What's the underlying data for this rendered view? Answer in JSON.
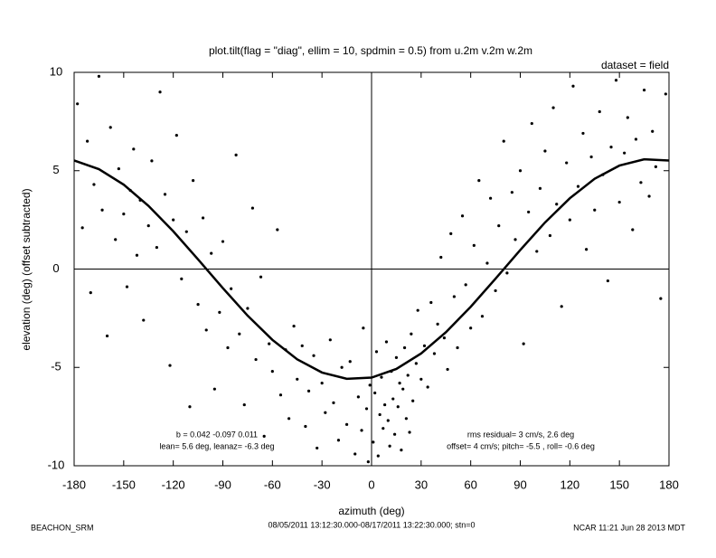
{
  "chart_data": {
    "type": "scatter",
    "title": "plot.tilt(flag = \"diag\", ellim = 10, spdmin = 0.5) from u.2m v.2m w.2m",
    "subtitle": "dataset = field",
    "x_label": "azimuth (deg)",
    "y_label": "elevation (deg)  (offset subtracted)",
    "annotations_left": [
      "b =  0.042 -0.097  0.011",
      "lean= 5.6 deg, leanaz= -6.3 deg"
    ],
    "annotations_right": [
      "rms residual= 3 cm/s, 2.6 deg",
      "offset= 4 cm/s; pitch= -5.5 , roll= -0.6 deg"
    ],
    "footer": [
      "BEACHON_SRM",
      "08/05/2011 13:12:30.000-08/17/2011 13:22:30.000; stn=0",
      "NCAR 11:21 Jun 28 2013 MDT"
    ],
    "color": "#000000",
    "xlim": [
      -180,
      180
    ],
    "ylim": [
      -10,
      10
    ],
    "xticks": [
      -180,
      -150,
      -120,
      -90,
      -60,
      -30,
      0,
      30,
      60,
      90,
      120,
      150,
      180
    ],
    "yticks": [
      -10,
      -5,
      0,
      5,
      10
    ],
    "x": [
      -178,
      -175,
      -172,
      -170,
      -168,
      -165,
      -163,
      -160,
      -158,
      -155,
      -153,
      -150,
      -148,
      -146,
      -144,
      -142,
      -140,
      -138,
      -135,
      -133,
      -130,
      -128,
      -125,
      -122,
      -120,
      -118,
      -115,
      -112,
      -110,
      -108,
      -105,
      -102,
      -100,
      -97,
      -95,
      -92,
      -90,
      -87,
      -85,
      -82,
      -80,
      -77,
      -75,
      -72,
      -70,
      -67,
      -65,
      -62,
      -60,
      -57,
      -55,
      -52,
      -50,
      -47,
      -45,
      -42,
      -40,
      -38,
      -35,
      -33,
      -30,
      -28,
      -25,
      -23,
      -20,
      -18,
      -15,
      -13,
      -10,
      -8,
      -6,
      -5,
      -3,
      -2,
      -1,
      1,
      2,
      3,
      4,
      5,
      6,
      7,
      8,
      9,
      10,
      11,
      12,
      13,
      14,
      15,
      16,
      17,
      18,
      19,
      20,
      21,
      22,
      23,
      24,
      25,
      27,
      28,
      30,
      32,
      34,
      36,
      38,
      40,
      42,
      44,
      46,
      48,
      50,
      52,
      55,
      57,
      60,
      62,
      65,
      67,
      70,
      72,
      75,
      77,
      80,
      82,
      85,
      87,
      90,
      92,
      95,
      97,
      100,
      102,
      105,
      108,
      110,
      112,
      115,
      118,
      120,
      122,
      125,
      128,
      130,
      133,
      135,
      138,
      140,
      143,
      145,
      148,
      150,
      153,
      155,
      158,
      160,
      163,
      165,
      168,
      170,
      172,
      175,
      178
    ],
    "values": [
      8.4,
      2.1,
      6.5,
      -1.2,
      4.3,
      9.8,
      3.0,
      -3.4,
      7.2,
      1.5,
      5.1,
      2.8,
      -0.9,
      4.0,
      6.1,
      0.7,
      3.5,
      -2.6,
      2.2,
      5.5,
      1.1,
      9.0,
      3.8,
      -4.9,
      2.5,
      6.8,
      -0.5,
      1.9,
      -7.0,
      4.5,
      -1.8,
      2.6,
      -3.1,
      0.8,
      -6.1,
      -2.2,
      1.4,
      -4.0,
      -1.0,
      5.8,
      -3.3,
      -6.9,
      -2.0,
      3.1,
      -4.6,
      -0.4,
      -8.5,
      -3.8,
      -5.2,
      2.0,
      -6.4,
      -4.1,
      -7.6,
      -2.9,
      -5.6,
      -3.9,
      -8.0,
      -6.2,
      -4.4,
      -9.1,
      -5.8,
      -7.3,
      -3.6,
      -6.8,
      -8.7,
      -5.0,
      -7.9,
      -4.7,
      -9.4,
      -6.5,
      -8.2,
      -3.0,
      -7.1,
      -9.8,
      -5.9,
      -8.8,
      -6.3,
      -4.2,
      -9.5,
      -7.4,
      -5.5,
      -8.1,
      -6.9,
      -3.7,
      -7.7,
      -9.0,
      -5.2,
      -6.6,
      -8.4,
      -4.5,
      -7.0,
      -5.8,
      -9.2,
      -6.1,
      -4.0,
      -7.6,
      -5.4,
      -8.3,
      -3.3,
      -6.7,
      -4.8,
      -2.1,
      -5.6,
      -3.9,
      -6.0,
      -1.7,
      -4.3,
      -2.8,
      0.6,
      -3.5,
      -5.1,
      1.8,
      -1.4,
      -4.0,
      2.7,
      -0.8,
      -3.0,
      1.2,
      4.5,
      -2.4,
      0.3,
      3.6,
      -1.1,
      2.2,
      6.5,
      -0.2,
      3.9,
      1.5,
      5.0,
      -3.8,
      2.9,
      7.4,
      0.9,
      4.1,
      6.0,
      1.7,
      8.2,
      3.3,
      -1.9,
      5.4,
      2.5,
      9.3,
      4.2,
      6.9,
      1.0,
      5.7,
      3.0,
      8.0,
      4.8,
      -0.6,
      6.2,
      9.6,
      3.4,
      5.9,
      7.7,
      2.0,
      6.6,
      4.4,
      9.1,
      3.7,
      7.0,
      5.2,
      -1.5,
      8.9
    ],
    "fit": {
      "x": [
        -180,
        -165,
        -150,
        -135,
        -120,
        -105,
        -90,
        -75,
        -60,
        -45,
        -30,
        -15,
        0,
        15,
        30,
        45,
        60,
        75,
        90,
        105,
        120,
        135,
        150,
        165,
        180
      ],
      "values": [
        5.52,
        5.08,
        4.29,
        3.21,
        1.92,
        0.49,
        -0.97,
        -2.37,
        -3.6,
        -4.59,
        -5.26,
        -5.58,
        -5.52,
        -5.08,
        -4.29,
        -3.21,
        -1.92,
        -0.49,
        0.97,
        2.37,
        3.6,
        4.59,
        5.26,
        5.58,
        5.52
      ]
    }
  }
}
